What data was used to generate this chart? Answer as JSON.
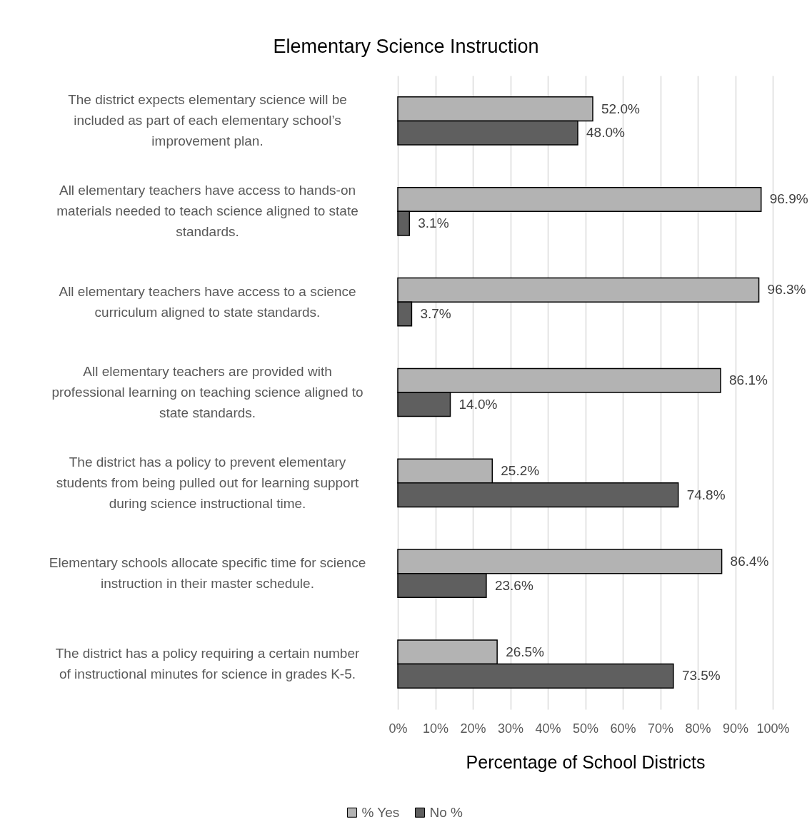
{
  "chart_data": {
    "type": "bar",
    "orientation": "horizontal",
    "title": "Elementary Science Instruction",
    "xlabel": "Percentage of School Districts",
    "categories": [
      "The district expects elementary science will be included as part of each elementary school’s improvement plan.",
      "All elementary teachers have access to hands-on materials needed to teach science aligned to state standards.",
      "All elementary teachers have access to a science curriculum aligned to state standards.",
      "All elementary teachers are provided with professional learning on teaching science aligned to state standards.",
      "The district has a policy to prevent elementary students from being pulled out for learning support during science instructional time.",
      "Elementary schools allocate specific time for science instruction in their master schedule.",
      "The district has a policy requiring a certain number of instructional minutes for science in grades K-5."
    ],
    "series": [
      {
        "name": "% Yes",
        "color": "#b3b3b3",
        "values": [
          52.0,
          96.9,
          96.3,
          86.1,
          25.2,
          86.4,
          26.5
        ],
        "value_labels": [
          "52.0%",
          "96.9%",
          "96.3%",
          "86.1%",
          "25.2%",
          "86.4%",
          "26.5%"
        ]
      },
      {
        "name": "No %",
        "color": "#5f5f5f",
        "values": [
          48.0,
          3.1,
          3.7,
          14.0,
          74.8,
          23.6,
          73.5
        ],
        "value_labels": [
          "48.0%",
          "3.1%",
          "3.7%",
          "14.0%",
          "74.8%",
          "23.6%",
          "73.5%"
        ]
      }
    ],
    "xlim": [
      0,
      100
    ],
    "xticks": [
      {
        "value": 0,
        "label": "0%"
      },
      {
        "value": 10,
        "label": "10%"
      },
      {
        "value": 20,
        "label": "20%"
      },
      {
        "value": 30,
        "label": "30%"
      },
      {
        "value": 40,
        "label": "40%"
      },
      {
        "value": 50,
        "label": "50%"
      },
      {
        "value": 60,
        "label": "60%"
      },
      {
        "value": 70,
        "label": "70%"
      },
      {
        "value": 80,
        "label": "80%"
      },
      {
        "value": 90,
        "label": "90%"
      },
      {
        "value": 100,
        "label": "100%"
      }
    ],
    "grid": "x",
    "legend": "bottom"
  }
}
